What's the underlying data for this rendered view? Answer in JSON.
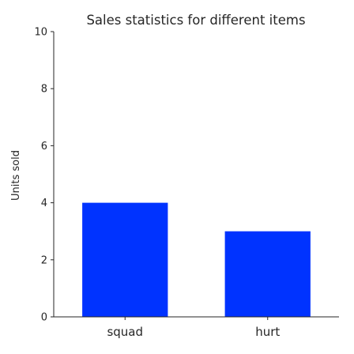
{
  "chart_data": {
    "type": "bar",
    "title": "Sales statistics for different items",
    "xlabel": "",
    "ylabel": "Units sold",
    "categories": [
      "squad",
      "hurt"
    ],
    "values": [
      4,
      3
    ],
    "ylim": [
      0,
      10
    ],
    "yticks": [
      0,
      2,
      4,
      6,
      8,
      10
    ],
    "grid": false,
    "bar_color": "#0033ff",
    "axis_color": "#262626"
  }
}
